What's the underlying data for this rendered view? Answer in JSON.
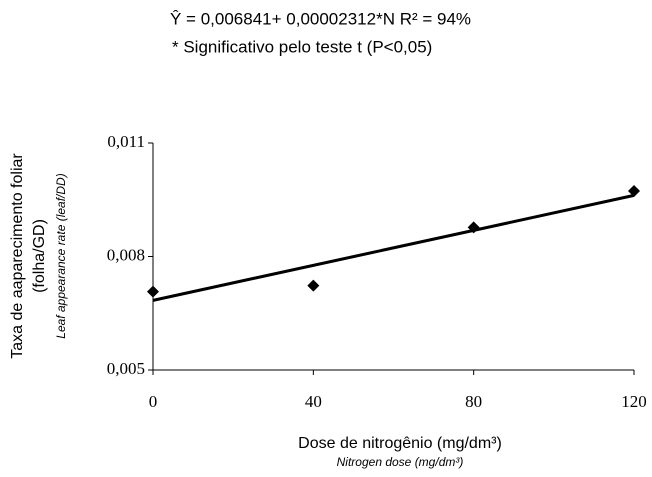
{
  "chart_data": {
    "type": "scatter",
    "equation": "Ŷ = 0,006841+ 0,00002312*N  R² = 94%",
    "note": "* Significativo pelo teste t (P<0,05)",
    "y_label": [
      "Taxa de aaparecimento foliar",
      "(folha/GD)"
    ],
    "y_label_en": "Leaf appearance rate (leaf/DD)",
    "x_label": "Dose de nitrogênio (mg/dm³)",
    "x_label_en": "Nitrogen dose (mg/dm³)",
    "x": [
      0,
      40,
      80,
      120
    ],
    "values": [
      0.00707,
      0.00723,
      0.00877,
      0.00973
    ],
    "color": "#000000",
    "trendline": {
      "intercept": 0.006841,
      "slope": 2.312e-05
    },
    "xlim": [
      0,
      120
    ],
    "xticks": [
      0,
      40,
      80,
      120
    ],
    "ylim": [
      0.005,
      0.011
    ],
    "yticks": [
      {
        "value": 0.005,
        "label": "0,005"
      },
      {
        "value": 0.008,
        "label": "0,008"
      },
      {
        "value": 0.011,
        "label": "0,011"
      }
    ],
    "grid": false
  }
}
